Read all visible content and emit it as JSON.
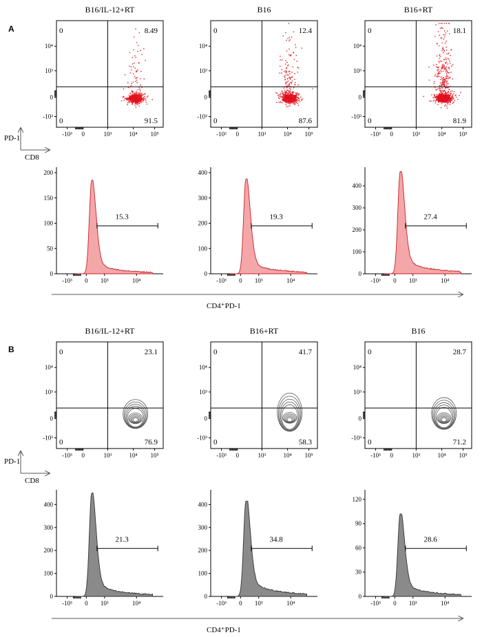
{
  "panels": [
    {
      "letter": "A",
      "bottom_label": "CD4⁺PD-1",
      "ylabel": "PD-1",
      "xlabel": "CD8",
      "style": "dot"
    },
    {
      "letter": "B",
      "bottom_label": "CD4⁺PD-1",
      "ylabel": "PD-1",
      "xlabel": "CD8",
      "style": "contour"
    }
  ],
  "x_ticks": [
    "-10³",
    "0",
    "10³",
    "10⁴",
    "10⁵"
  ],
  "y_ticks": [
    "10⁴",
    "10³",
    "0",
    "-10³"
  ],
  "colors": {
    "dot": "#e0101c",
    "dot_fill": "#f2a9ab",
    "hist_red": "#f4a7a9",
    "hist_red_line": "#c8202a",
    "hist_gray": "#8a8a8a",
    "contour": "#555555"
  },
  "chart_data": [
    {
      "type": "scatter",
      "style": "dot",
      "title": "B16/IL-12+RT",
      "quadrants": {
        "ul": "0",
        "ur": "8.49",
        "ll": "0",
        "lr": "91.5"
      },
      "ur_value": 8.49,
      "lr_value": 91.5
    },
    {
      "type": "scatter",
      "style": "dot",
      "title": "B16",
      "quadrants": {
        "ul": "0",
        "ur": "12.4",
        "ll": "0",
        "lr": "87.6"
      },
      "ur_value": 12.4,
      "lr_value": 87.6
    },
    {
      "type": "scatter",
      "style": "dot",
      "title": "B16+RT",
      "quadrants": {
        "ul": "0",
        "ur": "18.1",
        "ll": "0",
        "lr": "81.9"
      },
      "ur_value": 18.1,
      "lr_value": 81.9
    },
    {
      "type": "area",
      "style": "red",
      "yticks": [
        "200",
        "150",
        "100",
        "50",
        "0"
      ],
      "ylim": [
        0,
        200
      ],
      "peak": 185,
      "gate_label": "15.3",
      "gate_value": 15.3
    },
    {
      "type": "area",
      "style": "red",
      "yticks": [
        "400",
        "300",
        "200",
        "100",
        "0"
      ],
      "ylim": [
        0,
        400
      ],
      "peak": 375,
      "gate_label": "19.3",
      "gate_value": 19.3
    },
    {
      "type": "area",
      "style": "red",
      "yticks": [
        "400",
        "300",
        "200",
        "100",
        "0"
      ],
      "ylim": [
        0,
        460
      ],
      "peak": 465,
      "gate_label": "27.4",
      "gate_value": 27.4
    },
    {
      "type": "scatter",
      "style": "contour",
      "title": "B16/IL-12+RT",
      "quadrants": {
        "ul": "0",
        "ur": "23.1",
        "ll": "0",
        "lr": "76.9"
      },
      "ur_value": 23.1,
      "lr_value": 76.9
    },
    {
      "type": "scatter",
      "style": "contour",
      "title": "B16+RT",
      "quadrants": {
        "ul": "0",
        "ur": "41.7",
        "ll": "0",
        "lr": "58.3"
      },
      "ur_value": 41.7,
      "lr_value": 58.3
    },
    {
      "type": "scatter",
      "style": "contour",
      "title": "B16",
      "quadrants": {
        "ul": "0",
        "ur": "28.7",
        "ll": "0",
        "lr": "71.2"
      },
      "ur_value": 28.7,
      "lr_value": 71.2
    },
    {
      "type": "area",
      "style": "gray",
      "yticks": [
        "400",
        "300",
        "200",
        "100",
        "0"
      ],
      "ylim": [
        0,
        440
      ],
      "peak": 450,
      "gate_label": "21.3",
      "gate_value": 21.3
    },
    {
      "type": "area",
      "style": "gray",
      "yticks": [
        "400",
        "300",
        "200",
        "100",
        "0"
      ],
      "ylim": [
        0,
        440
      ],
      "peak": 415,
      "gate_label": "34.8",
      "gate_value": 34.8
    },
    {
      "type": "area",
      "style": "gray",
      "yticks": [
        "120",
        "90",
        "60",
        "30",
        "0"
      ],
      "ylim": [
        0,
        125
      ],
      "peak": 102,
      "gate_label": "28.6",
      "gate_value": 28.6
    }
  ]
}
